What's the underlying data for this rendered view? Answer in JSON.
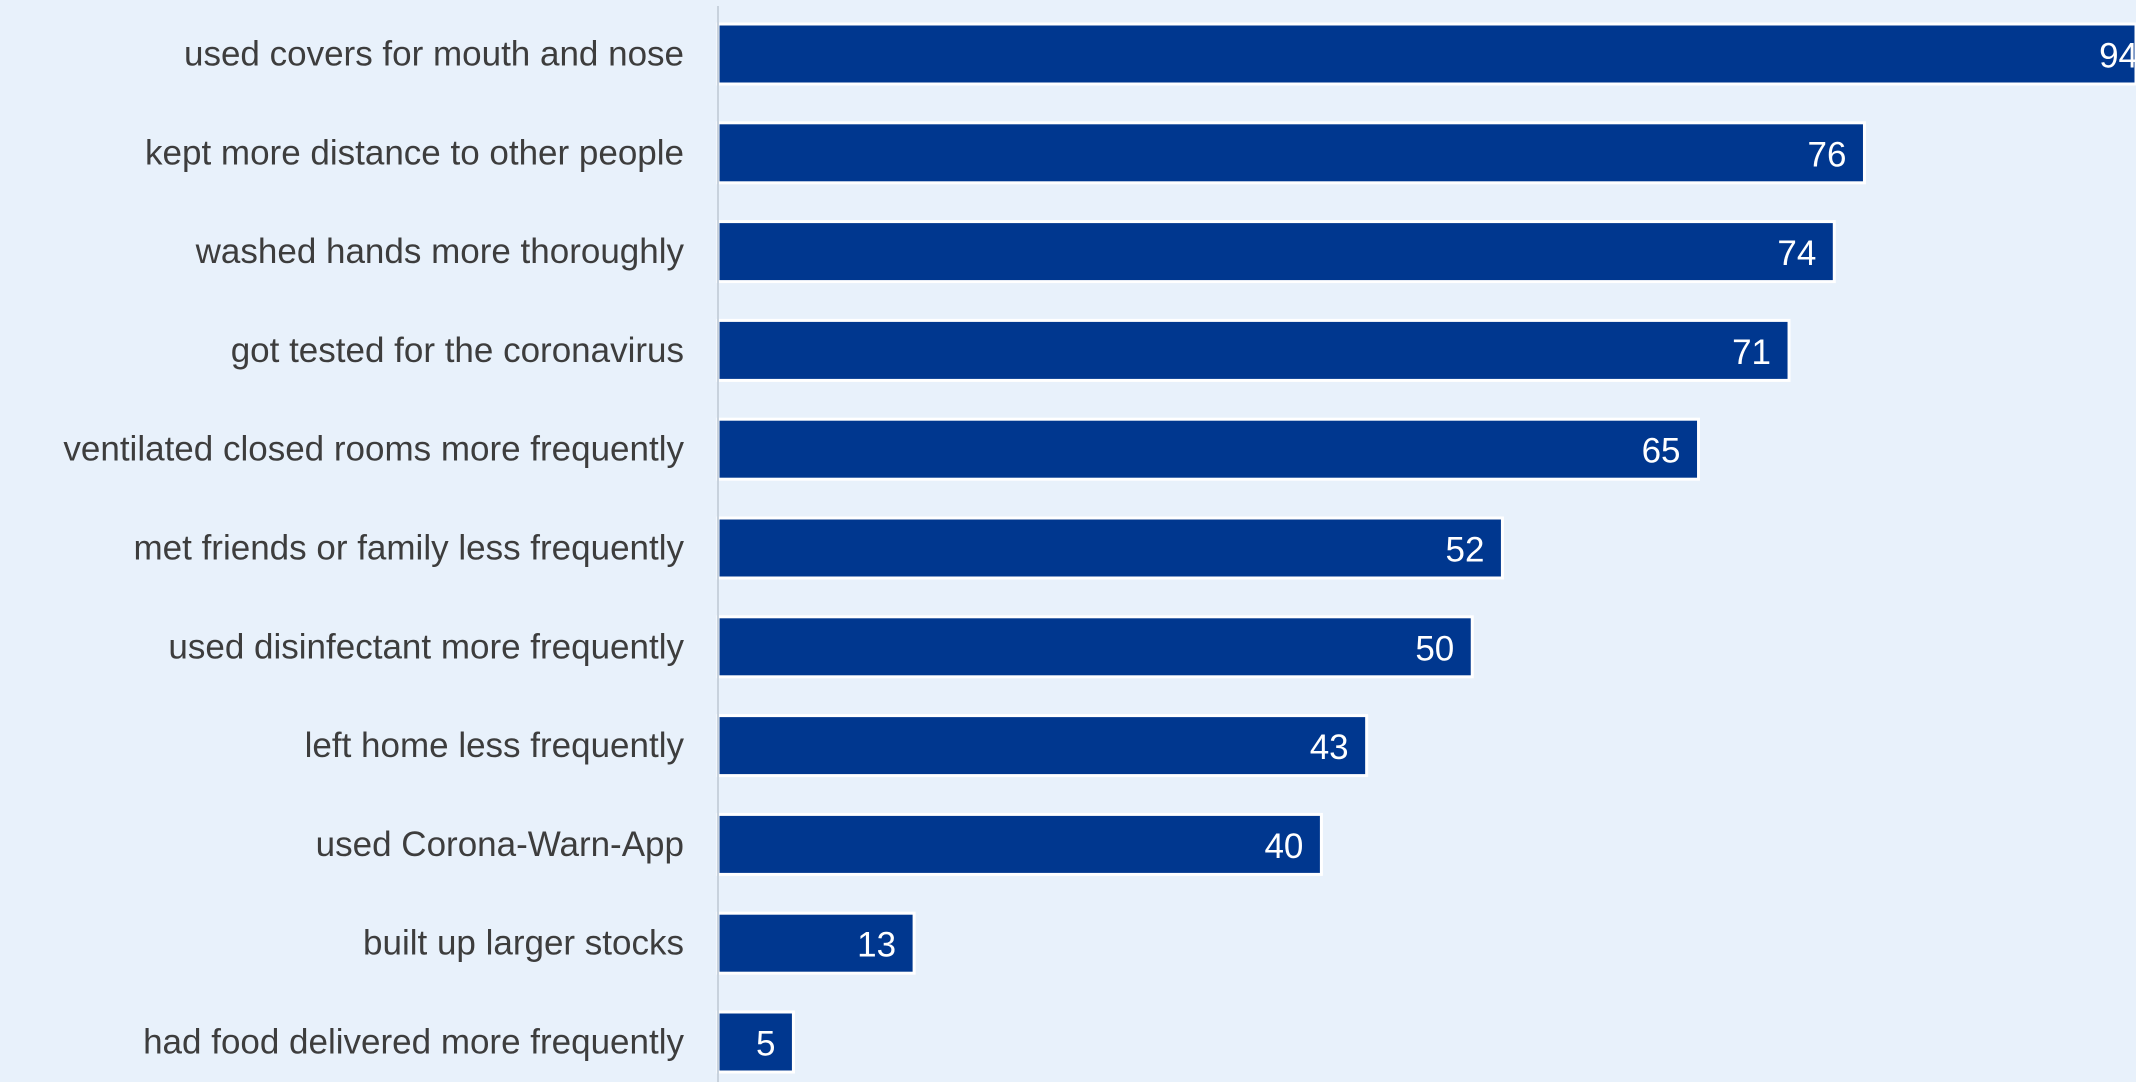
{
  "chart_data": {
    "type": "bar",
    "orientation": "horizontal",
    "title": "",
    "xlabel": "",
    "ylabel": "",
    "categories": [
      "used covers for mouth and nose",
      "kept more distance to other people",
      "washed hands more thoroughly",
      "got tested for the coronavirus",
      "ventilated closed rooms more frequently",
      "met friends or family less frequently",
      "used disinfectant more frequently",
      "left home less frequently",
      "used Corona-Warn-App",
      "built up larger stocks",
      "had food delivered more frequently"
    ],
    "values": [
      94,
      76,
      74,
      71,
      65,
      52,
      50,
      43,
      40,
      13,
      5
    ],
    "value_labels": [
      "94",
      "76",
      "74",
      "71",
      "65",
      "52",
      "50",
      "43",
      "40",
      "13",
      "5"
    ],
    "xlim": [
      0,
      94
    ],
    "grid": false,
    "legend": "none",
    "colors": {
      "bar": "#00378f",
      "bar_outline": "#ffffff",
      "background": "#e8f1fb",
      "axis": "#c8d2dd",
      "category_text": "#3d3d3d",
      "value_text": "#ffffff"
    }
  }
}
